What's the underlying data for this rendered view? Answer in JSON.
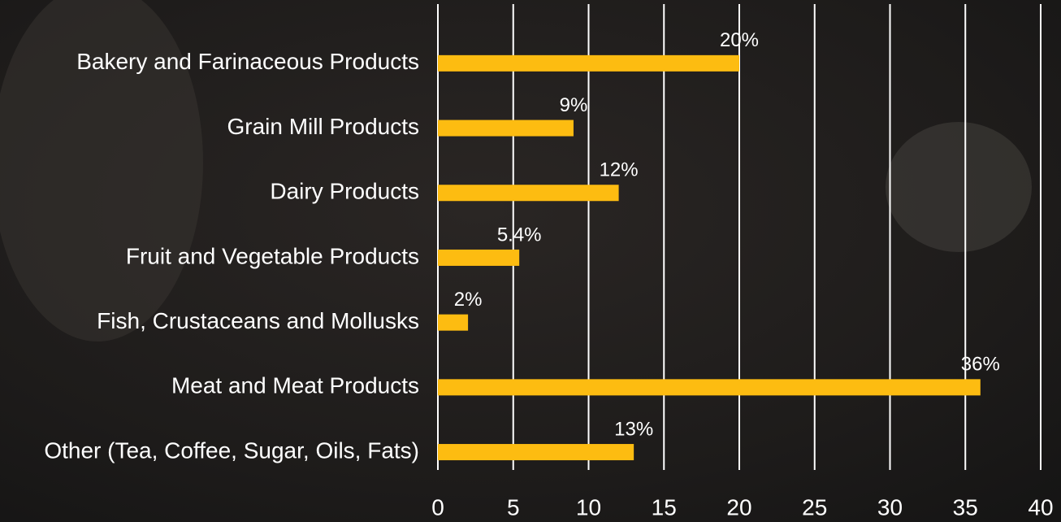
{
  "chart_data": {
    "type": "barh",
    "categories": [
      "Bakery and Farinaceous Products",
      "Grain Mill Products",
      "Dairy Products",
      "Fruit and Vegetable Products",
      "Fish, Crustaceans and Mollusks",
      "Meat and Meat Products",
      "Other (Tea, Coffee, Sugar, Oils, Fats)"
    ],
    "values": [
      20,
      9,
      12,
      5.4,
      2,
      36,
      13
    ],
    "value_labels": [
      "20%",
      "9%",
      "12%",
      "5.4%",
      "2%",
      "36%",
      "13%"
    ],
    "color": "#fdbc11",
    "xlim": [
      0,
      40
    ],
    "xticks": [
      0,
      5,
      10,
      15,
      20,
      25,
      30,
      35,
      40
    ],
    "grid": true
  }
}
